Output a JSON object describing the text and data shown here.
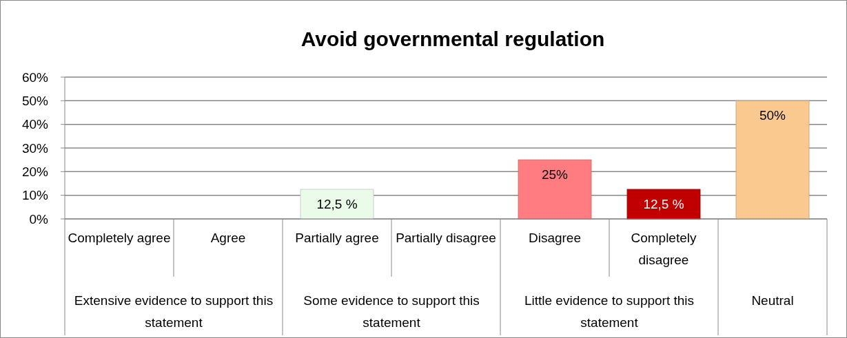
{
  "chart_data": {
    "type": "bar",
    "title": "Avoid governmental regulation",
    "categories": [
      "Completely agree",
      "Agree",
      "Partially agree",
      "Partially disagree",
      "Disagree",
      "Completely disagree",
      null
    ],
    "values": [
      0,
      0,
      12.5,
      0,
      25,
      12.5,
      50
    ],
    "colors": [
      "#e8f8e8",
      "#e8f8e8",
      "#eafbea",
      "#e0f0e0",
      "#ff7c80",
      "#c00000",
      "#fac990"
    ],
    "value_labels": [
      null,
      null,
      "12,5 %",
      null,
      "25%",
      "12,5 %",
      "50%"
    ],
    "annotations": [
      "Extensive evidence to support this statement",
      "Some evidence to support this statement",
      "Little evidence to support this statement",
      "Neutral"
    ],
    "ylim": [
      0,
      60
    ],
    "yticks": [
      {
        "value": 0,
        "label": "0%"
      },
      {
        "value": 10,
        "label": "10%"
      },
      {
        "value": 20,
        "label": "20%"
      },
      {
        "value": 30,
        "label": "30%"
      },
      {
        "value": 40,
        "label": "40%"
      },
      {
        "value": 50,
        "label": "50%"
      },
      {
        "value": 60,
        "label": "60%"
      }
    ],
    "grid": "y"
  }
}
